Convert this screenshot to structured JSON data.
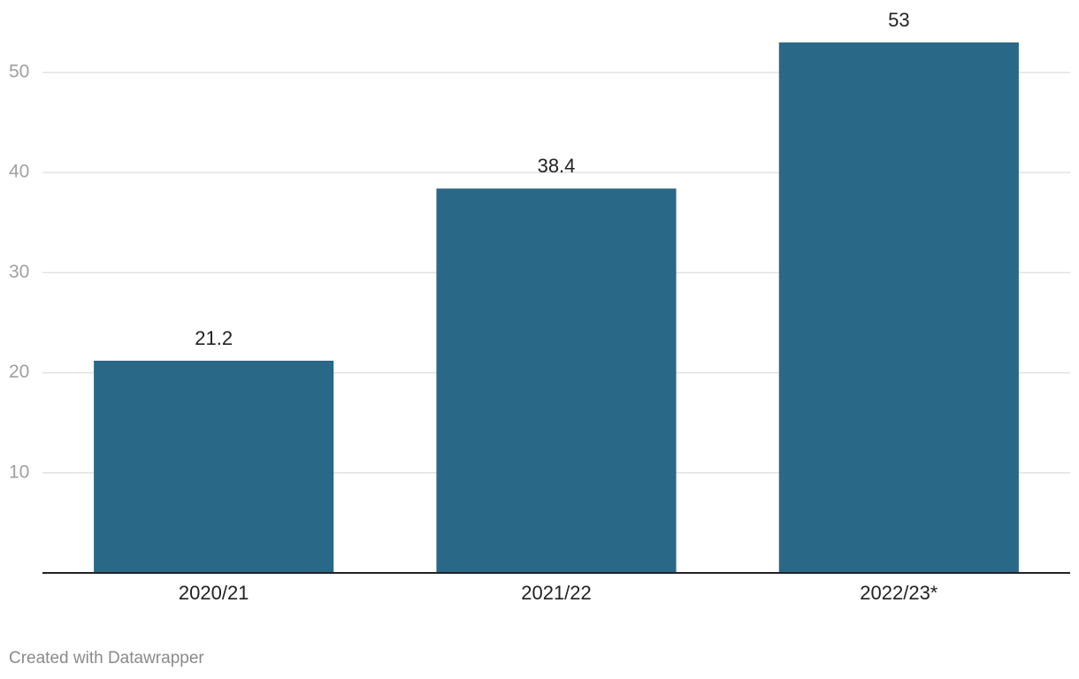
{
  "chart_data": {
    "type": "bar",
    "categories": [
      "2020/21",
      "2021/22",
      "2022/23*"
    ],
    "values": [
      21.2,
      38.4,
      53
    ],
    "color": "#2a6887",
    "ylim": [
      0,
      53
    ],
    "yticks": [
      10,
      20,
      30,
      40,
      50
    ],
    "grid": true,
    "credit": "Created with Datawrapper"
  }
}
